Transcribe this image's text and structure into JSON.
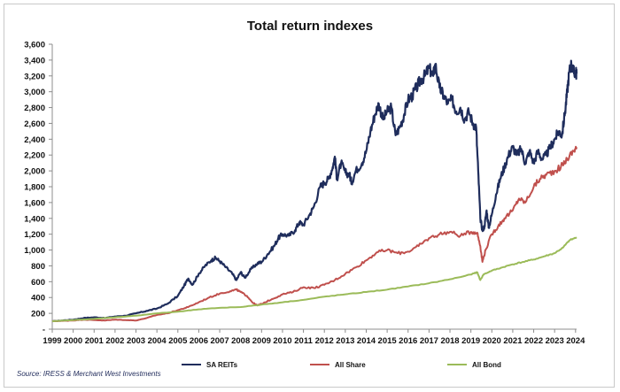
{
  "chart_data": {
    "type": "line",
    "title": "Total return indexes",
    "xlabel": "",
    "ylabel": "",
    "xlim": [
      1999,
      2024.05
    ],
    "ylim": [
      0,
      3600
    ],
    "y_ticks": [
      0,
      200,
      400,
      600,
      800,
      1000,
      1200,
      1400,
      1600,
      1800,
      2000,
      2200,
      2400,
      2600,
      2800,
      3000,
      3200,
      3400,
      3600
    ],
    "y_tick_labels": [
      "-",
      "200",
      "400",
      "600",
      "800",
      "1,000",
      "1,200",
      "1,400",
      "1,600",
      "1,800",
      "2,000",
      "2,200",
      "2,400",
      "2,600",
      "2,800",
      "3,000",
      "3,200",
      "3,400",
      "3,600"
    ],
    "x_ticks": [
      1999,
      2000,
      2001,
      2002,
      2003,
      2004,
      2005,
      2006,
      2007,
      2008,
      2009,
      2010,
      2011,
      2012,
      2013,
      2014,
      2015,
      2016,
      2017,
      2018,
      2019,
      2020,
      2021,
      2022,
      2023,
      2024
    ],
    "x_tick_labels": [
      "1999",
      "2000",
      "2001",
      "2002",
      "2003",
      "2004",
      "2005",
      "2006",
      "2007",
      "2008",
      "2009",
      "2010",
      "2011",
      "2012",
      "2013",
      "2014",
      "2015",
      "2016",
      "2017",
      "2018",
      "2019",
      "2020",
      "2021",
      "2022",
      "2023",
      "2024"
    ],
    "grid": false,
    "legend_position": "bottom",
    "series": [
      {
        "name": "SA REITs",
        "color": "#1f2d5c",
        "points": [
          [
            1999.0,
            100
          ],
          [
            1999.5,
            110
          ],
          [
            2000.0,
            120
          ],
          [
            2000.5,
            140
          ],
          [
            2001.0,
            150
          ],
          [
            2001.5,
            140
          ],
          [
            2002.0,
            160
          ],
          [
            2002.5,
            170
          ],
          [
            2003.0,
            200
          ],
          [
            2003.5,
            230
          ],
          [
            2004.0,
            260
          ],
          [
            2004.5,
            320
          ],
          [
            2005.0,
            420
          ],
          [
            2005.3,
            550
          ],
          [
            2005.5,
            640
          ],
          [
            2005.7,
            560
          ],
          [
            2006.0,
            700
          ],
          [
            2006.3,
            800
          ],
          [
            2006.6,
            870
          ],
          [
            2006.8,
            900
          ],
          [
            2007.0,
            860
          ],
          [
            2007.3,
            780
          ],
          [
            2007.6,
            700
          ],
          [
            2007.8,
            620
          ],
          [
            2008.0,
            720
          ],
          [
            2008.2,
            650
          ],
          [
            2008.5,
            760
          ],
          [
            2008.8,
            830
          ],
          [
            2009.0,
            850
          ],
          [
            2009.3,
            950
          ],
          [
            2009.6,
            1050
          ],
          [
            2009.8,
            1150
          ],
          [
            2010.0,
            1200
          ],
          [
            2010.3,
            1180
          ],
          [
            2010.6,
            1250
          ],
          [
            2010.8,
            1350
          ],
          [
            2011.0,
            1320
          ],
          [
            2011.3,
            1450
          ],
          [
            2011.5,
            1550
          ],
          [
            2011.8,
            1800
          ],
          [
            2012.0,
            1850
          ],
          [
            2012.2,
            1900
          ],
          [
            2012.4,
            2050
          ],
          [
            2012.5,
            2180
          ],
          [
            2012.6,
            1900
          ],
          [
            2012.8,
            2100
          ],
          [
            2013.0,
            1980
          ],
          [
            2013.2,
            1950
          ],
          [
            2013.3,
            1850
          ],
          [
            2013.5,
            2000
          ],
          [
            2013.8,
            2100
          ],
          [
            2014.0,
            2250
          ],
          [
            2014.2,
            2500
          ],
          [
            2014.4,
            2700
          ],
          [
            2014.6,
            2850
          ],
          [
            2014.8,
            2650
          ],
          [
            2015.0,
            2750
          ],
          [
            2015.2,
            2800
          ],
          [
            2015.4,
            2450
          ],
          [
            2015.6,
            2550
          ],
          [
            2015.8,
            2700
          ],
          [
            2016.0,
            2900
          ],
          [
            2016.2,
            2950
          ],
          [
            2016.4,
            3050
          ],
          [
            2016.6,
            3150
          ],
          [
            2016.8,
            3200
          ],
          [
            2017.0,
            3300
          ],
          [
            2017.2,
            3200
          ],
          [
            2017.3,
            3350
          ],
          [
            2017.5,
            3050
          ],
          [
            2017.7,
            2950
          ],
          [
            2017.9,
            2850
          ],
          [
            2018.1,
            2900
          ],
          [
            2018.3,
            2750
          ],
          [
            2018.5,
            2800
          ],
          [
            2018.7,
            2650
          ],
          [
            2018.9,
            2750
          ],
          [
            2019.1,
            2600
          ],
          [
            2019.25,
            2550
          ],
          [
            2019.35,
            2000
          ],
          [
            2019.45,
            1400
          ],
          [
            2019.55,
            1250
          ],
          [
            2019.65,
            1300
          ],
          [
            2019.75,
            1500
          ],
          [
            2019.85,
            1280
          ],
          [
            2020.0,
            1450
          ],
          [
            2020.2,
            1700
          ],
          [
            2020.4,
            1900
          ],
          [
            2020.6,
            2050
          ],
          [
            2020.8,
            2200
          ],
          [
            2021.0,
            2300
          ],
          [
            2021.2,
            2200
          ],
          [
            2021.4,
            2280
          ],
          [
            2021.6,
            2100
          ],
          [
            2021.8,
            2250
          ],
          [
            2022.0,
            2100
          ],
          [
            2022.2,
            2250
          ],
          [
            2022.4,
            2150
          ],
          [
            2022.6,
            2200
          ],
          [
            2022.8,
            2300
          ],
          [
            2023.0,
            2400
          ],
          [
            2023.2,
            2500
          ],
          [
            2023.35,
            2450
          ],
          [
            2023.5,
            2750
          ],
          [
            2023.6,
            3000
          ],
          [
            2023.7,
            3250
          ],
          [
            2023.8,
            3350
          ],
          [
            2023.9,
            3250
          ],
          [
            2024.0,
            3250
          ],
          [
            2024.05,
            3230
          ]
        ]
      },
      {
        "name": "All Share",
        "color": "#c0504d",
        "points": [
          [
            1999.0,
            100
          ],
          [
            1999.5,
            105
          ],
          [
            2000.0,
            110
          ],
          [
            2000.5,
            120
          ],
          [
            2001.0,
            115
          ],
          [
            2001.5,
            110
          ],
          [
            2002.0,
            120
          ],
          [
            2002.5,
            115
          ],
          [
            2003.0,
            110
          ],
          [
            2003.5,
            140
          ],
          [
            2004.0,
            180
          ],
          [
            2004.5,
            200
          ],
          [
            2005.0,
            240
          ],
          [
            2005.5,
            280
          ],
          [
            2006.0,
            340
          ],
          [
            2006.5,
            400
          ],
          [
            2007.0,
            450
          ],
          [
            2007.5,
            480
          ],
          [
            2007.8,
            500
          ],
          [
            2008.0,
            470
          ],
          [
            2008.3,
            420
          ],
          [
            2008.6,
            330
          ],
          [
            2008.8,
            300
          ],
          [
            2009.0,
            320
          ],
          [
            2009.5,
            380
          ],
          [
            2010.0,
            440
          ],
          [
            2010.5,
            470
          ],
          [
            2011.0,
            530
          ],
          [
            2011.5,
            520
          ],
          [
            2012.0,
            560
          ],
          [
            2012.5,
            620
          ],
          [
            2013.0,
            700
          ],
          [
            2013.5,
            780
          ],
          [
            2014.0,
            870
          ],
          [
            2014.5,
            970
          ],
          [
            2015.0,
            1000
          ],
          [
            2015.5,
            960
          ],
          [
            2016.0,
            980
          ],
          [
            2016.5,
            1050
          ],
          [
            2017.0,
            1150
          ],
          [
            2017.5,
            1200
          ],
          [
            2018.0,
            1230
          ],
          [
            2018.5,
            1180
          ],
          [
            2019.0,
            1230
          ],
          [
            2019.3,
            1220
          ],
          [
            2019.45,
            1050
          ],
          [
            2019.55,
            850
          ],
          [
            2019.7,
            1000
          ],
          [
            2020.0,
            1200
          ],
          [
            2020.3,
            1300
          ],
          [
            2020.6,
            1400
          ],
          [
            2021.0,
            1500
          ],
          [
            2021.3,
            1650
          ],
          [
            2021.6,
            1600
          ],
          [
            2022.0,
            1800
          ],
          [
            2022.3,
            1900
          ],
          [
            2022.6,
            1950
          ],
          [
            2023.0,
            2000
          ],
          [
            2023.3,
            2050
          ],
          [
            2023.6,
            2150
          ],
          [
            2023.9,
            2250
          ],
          [
            2024.05,
            2300
          ]
        ]
      },
      {
        "name": "All Bond",
        "color": "#9bbb59",
        "points": [
          [
            1999.0,
            100
          ],
          [
            2000.0,
            115
          ],
          [
            2001.0,
            130
          ],
          [
            2002.0,
            150
          ],
          [
            2003.0,
            170
          ],
          [
            2004.0,
            200
          ],
          [
            2005.0,
            220
          ],
          [
            2006.0,
            250
          ],
          [
            2007.0,
            270
          ],
          [
            2008.0,
            280
          ],
          [
            2009.0,
            310
          ],
          [
            2010.0,
            340
          ],
          [
            2011.0,
            370
          ],
          [
            2012.0,
            410
          ],
          [
            2013.0,
            440
          ],
          [
            2014.0,
            470
          ],
          [
            2015.0,
            500
          ],
          [
            2016.0,
            540
          ],
          [
            2017.0,
            580
          ],
          [
            2018.0,
            630
          ],
          [
            2019.0,
            690
          ],
          [
            2019.3,
            720
          ],
          [
            2019.45,
            620
          ],
          [
            2019.6,
            690
          ],
          [
            2020.0,
            740
          ],
          [
            2020.5,
            780
          ],
          [
            2021.0,
            820
          ],
          [
            2021.5,
            850
          ],
          [
            2022.0,
            880
          ],
          [
            2022.5,
            920
          ],
          [
            2023.0,
            960
          ],
          [
            2023.4,
            1030
          ],
          [
            2023.7,
            1120
          ],
          [
            2024.05,
            1160
          ]
        ]
      }
    ]
  },
  "source": "Source: IRESS & Merchant West Investments"
}
